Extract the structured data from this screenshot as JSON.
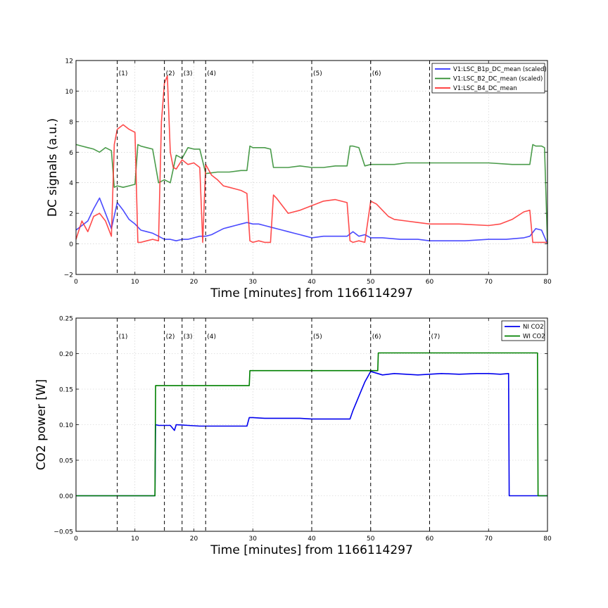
{
  "chart_data": [
    {
      "type": "line",
      "xlabel": "Time [minutes] from 1166114297",
      "ylabel": "DC signals (a.u.)",
      "xlim": [
        0,
        80
      ],
      "ylim": [
        -2,
        12
      ],
      "xticks": [
        "0",
        "10",
        "20",
        "30",
        "40",
        "50",
        "60",
        "70",
        "80"
      ],
      "yticks": [
        "−2",
        "0",
        "2",
        "4",
        "6",
        "8",
        "10",
        "12"
      ],
      "grid": true,
      "legend_position": "top-right",
      "event_markers": [
        {
          "x": 7,
          "label": "(1)"
        },
        {
          "x": 15,
          "label": "(2)"
        },
        {
          "x": 18,
          "label": "(3)"
        },
        {
          "x": 22,
          "label": "(4)"
        },
        {
          "x": 40,
          "label": "(5)"
        },
        {
          "x": 50,
          "label": "(6)"
        },
        {
          "x": 60,
          "label": ""
        }
      ],
      "series": [
        {
          "name": "V1:LSC_B1p_DC_mean (scaled)",
          "color": "#2b2bff",
          "x": [
            0,
            1,
            2,
            3,
            4,
            5,
            6,
            7,
            8,
            9,
            10,
            11,
            12,
            13,
            14,
            15,
            16,
            17,
            18,
            19,
            20,
            21,
            22,
            23,
            24,
            25,
            26,
            27,
            28,
            29,
            30,
            31,
            32,
            33,
            34,
            35,
            36,
            37,
            38,
            39,
            40,
            42,
            44,
            46,
            47,
            48,
            49,
            50,
            52,
            55,
            58,
            60,
            63,
            66,
            70,
            73,
            76,
            77,
            78,
            79,
            80
          ],
          "y": [
            0.9,
            1.2,
            1.5,
            2.3,
            3.0,
            2.0,
            1.0,
            2.7,
            2.2,
            1.6,
            1.3,
            0.9,
            0.8,
            0.7,
            0.5,
            0.3,
            0.3,
            0.2,
            0.3,
            0.3,
            0.4,
            0.5,
            0.5,
            0.6,
            0.8,
            1.0,
            1.1,
            1.2,
            1.3,
            1.4,
            1.3,
            1.3,
            1.2,
            1.1,
            1.0,
            0.9,
            0.8,
            0.7,
            0.6,
            0.5,
            0.4,
            0.5,
            0.5,
            0.5,
            0.8,
            0.5,
            0.6,
            0.4,
            0.4,
            0.3,
            0.3,
            0.2,
            0.2,
            0.2,
            0.3,
            0.3,
            0.4,
            0.5,
            1.0,
            0.9,
            0.0
          ]
        },
        {
          "name": "V1:LSC_B2_DC_mean (scaled)",
          "color": "#2a8a2a",
          "x": [
            0,
            1,
            2,
            3,
            4,
            5,
            6,
            6.5,
            7,
            8,
            9,
            10,
            10.5,
            11,
            12,
            13,
            14,
            15,
            16,
            17,
            18,
            19,
            20,
            21,
            22,
            24,
            26,
            28,
            29,
            29.5,
            30,
            32,
            33,
            33.5,
            34,
            36,
            38,
            40,
            42,
            44,
            46,
            46.5,
            47,
            48,
            49,
            50,
            52,
            54,
            56,
            58,
            60,
            65,
            70,
            74,
            77,
            77.5,
            78,
            79,
            79.5,
            80
          ],
          "y": [
            6.5,
            6.4,
            6.3,
            6.2,
            6.0,
            6.3,
            6.1,
            3.7,
            3.8,
            3.7,
            3.8,
            3.9,
            6.5,
            6.4,
            6.3,
            6.2,
            4.0,
            4.2,
            4.0,
            5.8,
            5.6,
            6.3,
            6.2,
            6.2,
            4.6,
            4.7,
            4.7,
            4.8,
            4.8,
            6.4,
            6.3,
            6.3,
            6.2,
            5.0,
            5.0,
            5.0,
            5.1,
            5.0,
            5.0,
            5.1,
            5.1,
            6.4,
            6.4,
            6.3,
            5.1,
            5.2,
            5.2,
            5.2,
            5.3,
            5.3,
            5.3,
            5.3,
            5.3,
            5.2,
            5.2,
            6.5,
            6.4,
            6.4,
            6.3,
            0.0
          ]
        },
        {
          "name": "V1:LSC_B4_DC_mean",
          "color": "#ff2b2b",
          "x": [
            0,
            1,
            2,
            3,
            4,
            5,
            6,
            6.5,
            7,
            8,
            9,
            10,
            10.5,
            11,
            12,
            13,
            14,
            14.5,
            15,
            15.5,
            16,
            16.5,
            17,
            18,
            19,
            20,
            21,
            21.5,
            22,
            23,
            24,
            25,
            26,
            27,
            28,
            29,
            29.5,
            30,
            31,
            32,
            33,
            33.5,
            34,
            36,
            38,
            40,
            42,
            44,
            46,
            46.5,
            47,
            48,
            49,
            50,
            51,
            52,
            53,
            54,
            56,
            58,
            60,
            65,
            70,
            72,
            74,
            76,
            77,
            77.5,
            78,
            80
          ],
          "y": [
            0.3,
            1.5,
            0.8,
            1.8,
            2.0,
            1.5,
            0.5,
            6.5,
            7.5,
            7.8,
            7.5,
            7.3,
            0.1,
            0.1,
            0.2,
            0.3,
            0.2,
            8.0,
            10.5,
            11.0,
            6.0,
            5.0,
            4.9,
            5.5,
            5.2,
            5.3,
            5.0,
            0.1,
            5.2,
            4.5,
            4.2,
            3.8,
            3.7,
            3.6,
            3.5,
            3.3,
            0.2,
            0.1,
            0.2,
            0.1,
            0.1,
            3.2,
            3.0,
            2.0,
            2.2,
            2.5,
            2.8,
            2.9,
            2.7,
            0.2,
            0.1,
            0.2,
            0.1,
            2.8,
            2.6,
            2.2,
            1.8,
            1.6,
            1.5,
            1.4,
            1.3,
            1.3,
            1.2,
            1.3,
            1.6,
            2.1,
            2.2,
            0.1,
            0.1,
            0.1
          ]
        }
      ]
    },
    {
      "type": "line",
      "xlabel": "Time [minutes] from 1166114297",
      "ylabel": "CO2 power [W]",
      "xlim": [
        0,
        80
      ],
      "ylim": [
        -0.05,
        0.25
      ],
      "xticks": [
        "0",
        "10",
        "20",
        "30",
        "40",
        "50",
        "60",
        "70",
        "80"
      ],
      "yticks": [
        "−0.05",
        "0.00",
        "0.05",
        "0.10",
        "0.15",
        "0.20",
        "0.25"
      ],
      "grid": true,
      "legend_position": "top-right",
      "event_markers": [
        {
          "x": 7,
          "label": "(1)"
        },
        {
          "x": 15,
          "label": "(2)"
        },
        {
          "x": 18,
          "label": "(3)"
        },
        {
          "x": 22,
          "label": "(4)"
        },
        {
          "x": 40,
          "label": "(5)"
        },
        {
          "x": 50,
          "label": "(6)"
        },
        {
          "x": 60,
          "label": "(7)"
        }
      ],
      "series": [
        {
          "name": "NI CO2",
          "color": "#0000ee",
          "x": [
            0,
            13.4,
            13.5,
            14,
            16,
            16.7,
            17,
            19,
            21,
            23,
            25,
            27,
            29,
            29.4,
            30,
            32,
            35,
            38,
            40,
            42,
            45,
            46.5,
            47,
            48,
            49,
            50,
            52,
            54,
            56,
            58,
            60,
            62,
            65,
            68,
            70,
            72,
            73.4,
            73.5,
            80
          ],
          "y": [
            0.0,
            0.0,
            0.1,
            0.099,
            0.099,
            0.092,
            0.1,
            0.099,
            0.098,
            0.098,
            0.098,
            0.098,
            0.098,
            0.11,
            0.11,
            0.109,
            0.109,
            0.109,
            0.108,
            0.108,
            0.108,
            0.108,
            0.12,
            0.14,
            0.16,
            0.175,
            0.17,
            0.172,
            0.171,
            0.17,
            0.171,
            0.172,
            0.171,
            0.172,
            0.172,
            0.171,
            0.172,
            0.0,
            0.0
          ]
        },
        {
          "name": "WI CO2",
          "color": "#008000",
          "x": [
            0,
            13.4,
            13.5,
            29.4,
            29.5,
            51.2,
            51.3,
            78.3,
            78.4,
            80
          ],
          "y": [
            0.0,
            0.0,
            0.155,
            0.155,
            0.176,
            0.176,
            0.201,
            0.201,
            0.0,
            0.0
          ]
        }
      ]
    }
  ]
}
